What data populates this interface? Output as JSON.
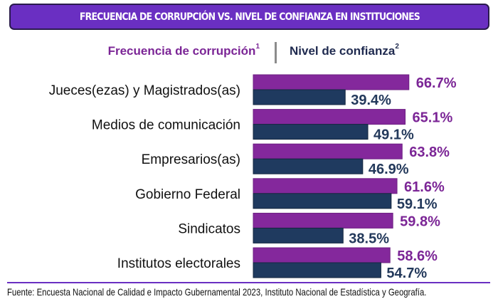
{
  "header": {
    "title": "FRECUENCIA DE CORRUPCIÓN VS. NIVEL DE CONFIANZA EN INSTITUCIONES"
  },
  "legend": {
    "corruption_label": "Frecuencia de corrupción",
    "corruption_sup": "1",
    "trust_label": "Nivel de confianza",
    "trust_sup": "2"
  },
  "colors": {
    "header_bg": "#6a2fc2",
    "corruption": "#84289c",
    "corruption_text": "#7b2596",
    "trust": "#1f3a5f",
    "trust_text": "#23395b"
  },
  "chart_data": {
    "type": "bar",
    "orientation": "horizontal",
    "title": "FRECUENCIA DE CORRUPCIÓN VS. NIVEL DE CONFIANZA EN INSTITUCIONES",
    "categories": [
      "Jueces(ezas) y Magistrados(as)",
      "Medios de comunicación",
      "Empresarios(as)",
      "Gobierno Federal",
      "Sindicatos",
      "Institutos electorales"
    ],
    "series": [
      {
        "name": "Frecuencia de corrupción",
        "values": [
          66.7,
          65.1,
          63.8,
          61.6,
          59.8,
          58.6
        ],
        "labels": [
          "66.7%",
          "65.1%",
          "63.8%",
          "61.6%",
          "59.8%",
          "58.6%"
        ]
      },
      {
        "name": "Nivel de confianza",
        "values": [
          39.4,
          49.1,
          46.9,
          59.1,
          38.5,
          54.7
        ],
        "labels": [
          "39.4%",
          "49.1%",
          "46.9%",
          "59.1%",
          "38.5%",
          "54.7%"
        ]
      }
    ],
    "xlim": [
      0,
      100
    ],
    "unit": "%",
    "grid": false,
    "legend_position": "top"
  },
  "footer": {
    "source": "Fuente: Encuesta Nacional de Calidad e Impacto Gubernamental 2023, Instituto Nacional de Estadística y Geografía."
  }
}
